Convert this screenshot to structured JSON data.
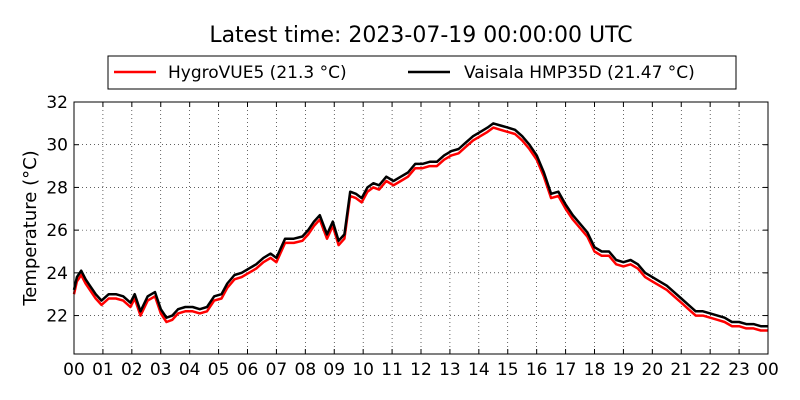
{
  "chart_data": {
    "type": "line",
    "title": "Latest time: 2023-07-19 00:00:00 UTC",
    "xlabel": "",
    "ylabel": "Temperature (°C)",
    "xlim": [
      0,
      24
    ],
    "ylim": [
      20.2,
      32
    ],
    "x_ticks": [
      0,
      1,
      2,
      3,
      4,
      5,
      6,
      7,
      8,
      9,
      10,
      11,
      12,
      13,
      14,
      15,
      16,
      17,
      18,
      19,
      20,
      21,
      22,
      23,
      24
    ],
    "x_tick_labels": [
      "00",
      "01",
      "02",
      "03",
      "04",
      "05",
      "06",
      "07",
      "08",
      "09",
      "10",
      "11",
      "12",
      "13",
      "14",
      "15",
      "16",
      "17",
      "18",
      "19",
      "20",
      "21",
      "22",
      "23",
      "00"
    ],
    "y_ticks": [
      22,
      24,
      26,
      28,
      30,
      32
    ],
    "y_tick_labels": [
      "22",
      "24",
      "26",
      "28",
      "30",
      "32"
    ],
    "grid": true,
    "legend_position": "top-center",
    "x": [
      0,
      0.1,
      0.25,
      0.4,
      0.55,
      0.75,
      0.95,
      1.2,
      1.45,
      1.7,
      1.95,
      2.1,
      2.3,
      2.55,
      2.8,
      3.0,
      3.2,
      3.4,
      3.6,
      3.85,
      4.1,
      4.35,
      4.6,
      4.85,
      5.1,
      5.3,
      5.55,
      5.8,
      6.05,
      6.3,
      6.55,
      6.8,
      7.0,
      7.3,
      7.6,
      7.9,
      8.1,
      8.3,
      8.5,
      8.75,
      8.95,
      9.15,
      9.35,
      9.55,
      9.75,
      9.95,
      10.15,
      10.35,
      10.55,
      10.8,
      11.05,
      11.3,
      11.55,
      11.8,
      12.05,
      12.3,
      12.55,
      12.8,
      13.05,
      13.3,
      13.55,
      13.8,
      14.05,
      14.3,
      14.5,
      14.75,
      15.0,
      15.25,
      15.5,
      15.75,
      16.0,
      16.25,
      16.5,
      16.75,
      17.0,
      17.25,
      17.5,
      17.75,
      18.0,
      18.25,
      18.5,
      18.75,
      19.0,
      19.25,
      19.5,
      19.75,
      20.0,
      20.25,
      20.5,
      20.75,
      21.0,
      21.25,
      21.5,
      21.75,
      22.0,
      22.25,
      22.5,
      22.75,
      23.0,
      23.25,
      23.5,
      23.75,
      24.0
    ],
    "series": [
      {
        "name": "HygroVUE5 (21.3 °C)",
        "color": "#ff0000",
        "values": [
          23.0,
          23.6,
          23.9,
          23.5,
          23.2,
          22.8,
          22.5,
          22.8,
          22.8,
          22.7,
          22.4,
          22.8,
          22.0,
          22.7,
          22.9,
          22.1,
          21.7,
          21.8,
          22.1,
          22.2,
          22.2,
          22.1,
          22.2,
          22.7,
          22.8,
          23.3,
          23.7,
          23.8,
          24.0,
          24.2,
          24.5,
          24.7,
          24.5,
          25.4,
          25.4,
          25.5,
          25.8,
          26.2,
          26.5,
          25.6,
          26.2,
          25.3,
          25.6,
          27.6,
          27.5,
          27.3,
          27.8,
          28.0,
          27.9,
          28.3,
          28.1,
          28.3,
          28.5,
          28.9,
          28.9,
          29.0,
          29.0,
          29.3,
          29.5,
          29.6,
          29.9,
          30.2,
          30.4,
          30.6,
          30.8,
          30.7,
          30.6,
          30.5,
          30.2,
          29.8,
          29.3,
          28.5,
          27.5,
          27.6,
          27.0,
          26.5,
          26.1,
          25.7,
          25.0,
          24.8,
          24.8,
          24.4,
          24.3,
          24.4,
          24.2,
          23.8,
          23.6,
          23.4,
          23.2,
          22.9,
          22.6,
          22.3,
          22.0,
          22.0,
          21.9,
          21.8,
          21.7,
          21.5,
          21.5,
          21.4,
          21.4,
          21.3,
          21.3
        ]
      },
      {
        "name": "Vaisala HMP35D (21.47 °C)",
        "color": "#000000",
        "values": [
          23.2,
          23.8,
          24.1,
          23.7,
          23.4,
          23.0,
          22.7,
          23.0,
          23.0,
          22.9,
          22.6,
          23.0,
          22.2,
          22.9,
          23.1,
          22.3,
          21.9,
          22.0,
          22.3,
          22.4,
          22.4,
          22.3,
          22.4,
          22.9,
          23.0,
          23.5,
          23.9,
          24.0,
          24.2,
          24.4,
          24.7,
          24.9,
          24.7,
          25.6,
          25.6,
          25.7,
          26.0,
          26.4,
          26.7,
          25.8,
          26.4,
          25.5,
          25.8,
          27.8,
          27.7,
          27.5,
          28.0,
          28.2,
          28.1,
          28.5,
          28.3,
          28.5,
          28.7,
          29.1,
          29.1,
          29.2,
          29.2,
          29.5,
          29.7,
          29.8,
          30.1,
          30.4,
          30.6,
          30.8,
          31.0,
          30.9,
          30.8,
          30.7,
          30.4,
          30.0,
          29.5,
          28.7,
          27.7,
          27.8,
          27.2,
          26.7,
          26.3,
          25.9,
          25.2,
          25.0,
          25.0,
          24.6,
          24.5,
          24.6,
          24.4,
          24.0,
          23.8,
          23.6,
          23.4,
          23.1,
          22.8,
          22.5,
          22.2,
          22.2,
          22.1,
          22.0,
          21.9,
          21.7,
          21.7,
          21.6,
          21.6,
          21.5,
          21.5
        ]
      }
    ]
  }
}
